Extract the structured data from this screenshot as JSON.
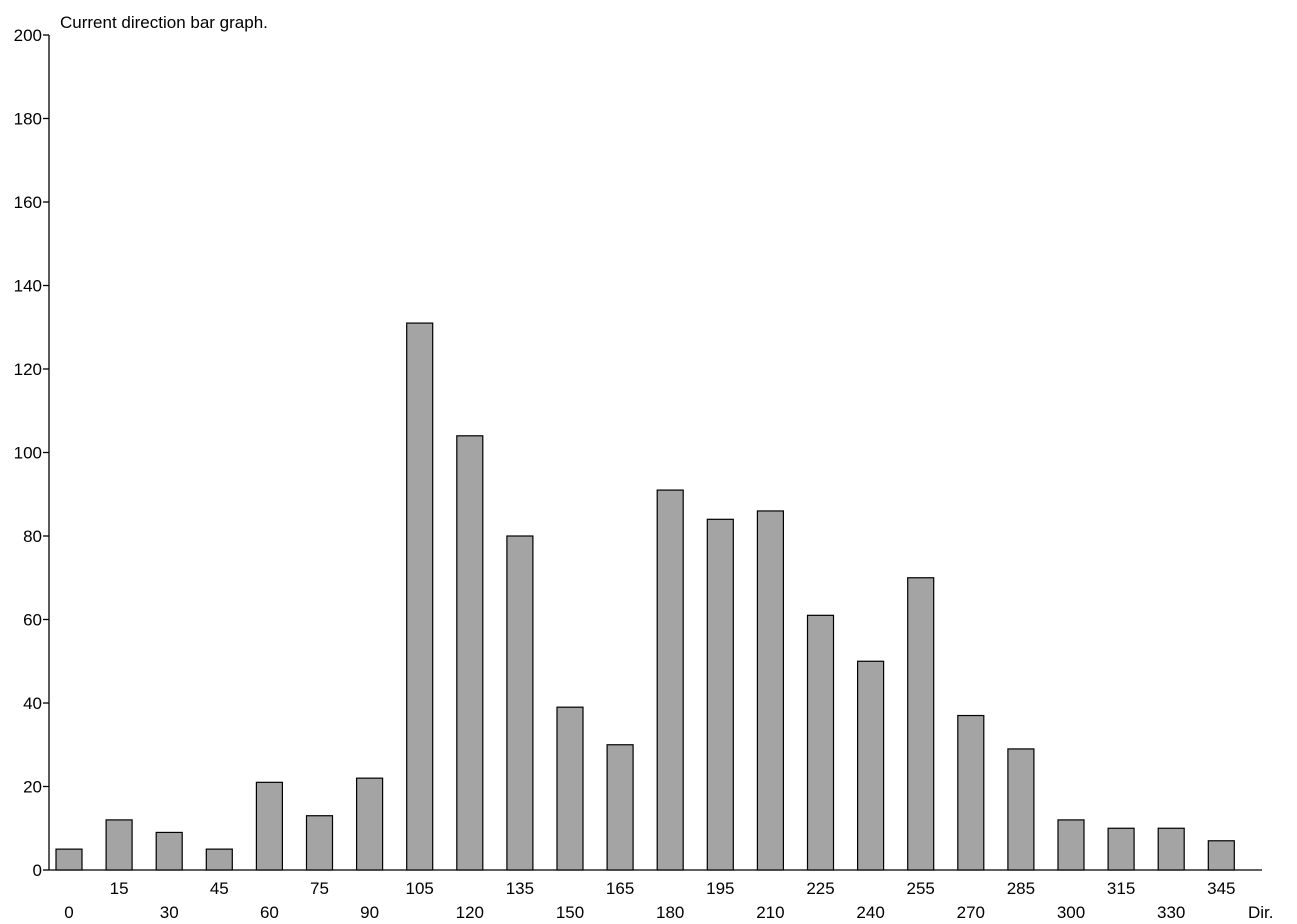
{
  "chart_data": {
    "type": "bar",
    "title": "Current direction bar graph.",
    "xlabel": "Dir.",
    "ylabel": "",
    "ylim": [
      0,
      200
    ],
    "yticks": [
      0,
      20,
      40,
      60,
      80,
      100,
      120,
      140,
      160,
      180,
      200
    ],
    "categories": [
      "0",
      "15",
      "30",
      "45",
      "60",
      "75",
      "90",
      "105",
      "120",
      "135",
      "150",
      "165",
      "180",
      "195",
      "210",
      "225",
      "240",
      "255",
      "270",
      "285",
      "300",
      "315",
      "330",
      "345"
    ],
    "values": [
      5,
      12,
      9,
      5,
      21,
      13,
      22,
      131,
      104,
      80,
      39,
      30,
      91,
      84,
      86,
      61,
      50,
      70,
      37,
      29,
      12,
      10,
      10,
      7
    ],
    "grid": false,
    "bar_color": "#a4a4a4"
  }
}
